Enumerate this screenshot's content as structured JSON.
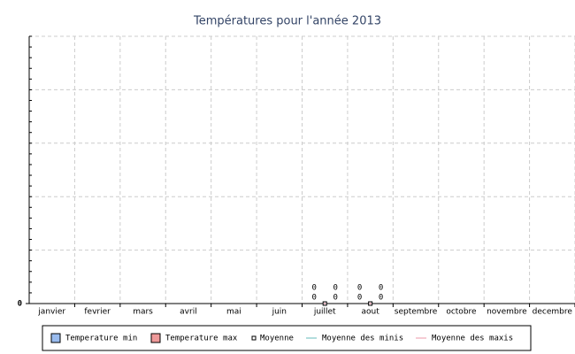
{
  "chart_data": {
    "type": "bar",
    "title": "Températures pour l'année 2013",
    "categories": [
      "janvier",
      "fevrier",
      "mars",
      "avril",
      "mai",
      "juin",
      "juillet",
      "aout",
      "septembre",
      "octobre",
      "novembre",
      "decembre"
    ],
    "series": [
      {
        "name": "Temperature min",
        "kind": "bar",
        "color": "#99bbee",
        "values": [
          null,
          null,
          null,
          null,
          null,
          null,
          0,
          0,
          null,
          null,
          null,
          null
        ]
      },
      {
        "name": "Temperature max",
        "kind": "bar",
        "color": "#ee9999",
        "values": [
          null,
          null,
          null,
          null,
          null,
          null,
          0,
          0,
          null,
          null,
          null,
          null
        ]
      },
      {
        "name": "Moyenne",
        "kind": "marker",
        "color": "#000000",
        "values": [
          null,
          null,
          null,
          null,
          null,
          null,
          0,
          0,
          null,
          null,
          null,
          null
        ]
      },
      {
        "name": "Moyenne des minis",
        "kind": "line",
        "color": "#66bbbb",
        "values": [
          null,
          null,
          null,
          null,
          null,
          null,
          0,
          0,
          null,
          null,
          null,
          null
        ]
      },
      {
        "name": "Moyenne des maxis",
        "kind": "line",
        "color": "#ee99aa",
        "values": [
          null,
          null,
          null,
          null,
          null,
          null,
          0,
          0,
          null,
          null,
          null,
          null
        ]
      }
    ],
    "ylim": [
      0,
      1
    ],
    "yticks": [
      0
    ],
    "grid": true
  }
}
